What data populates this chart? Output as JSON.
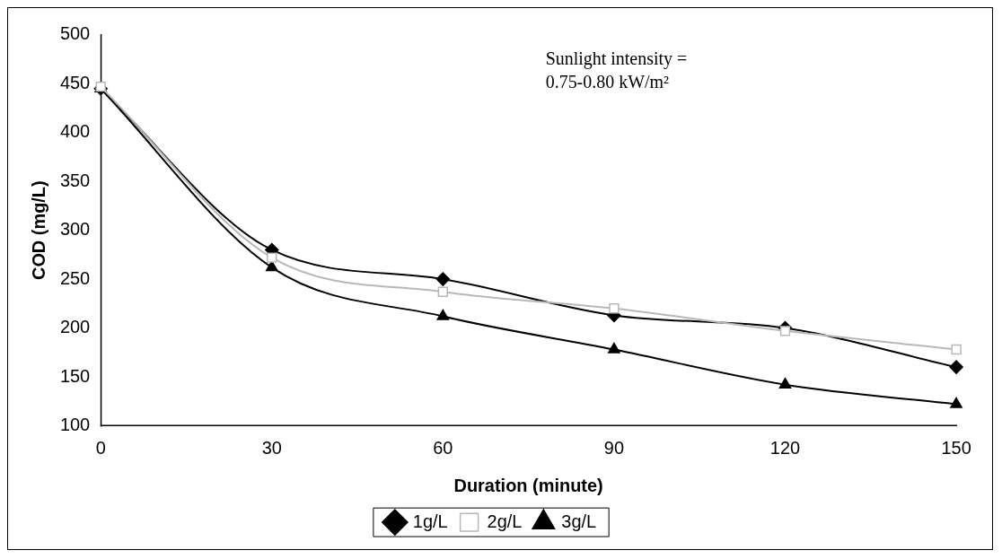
{
  "chart_data": {
    "type": "line",
    "xlabel": "Duration (minute)",
    "ylabel": "COD (mg/L)",
    "x": [
      0,
      30,
      60,
      90,
      120,
      150
    ],
    "series": [
      {
        "name": "1g/L",
        "color": "#000000",
        "marker": "diamond",
        "values": [
          445,
          280,
          250,
          213,
          200,
          160
        ]
      },
      {
        "name": "2g/L",
        "color": "#b8b8b8",
        "marker": "square",
        "values": [
          447,
          272,
          237,
          220,
          197,
          178
        ]
      },
      {
        "name": "3g/L",
        "color": "#000000",
        "marker": "triangle",
        "values": [
          445,
          262,
          212,
          178,
          142,
          122
        ]
      }
    ],
    "xlim": [
      0,
      150
    ],
    "xticks": [
      0,
      30,
      60,
      90,
      120,
      150
    ],
    "ylim": [
      100,
      500
    ],
    "yticks": [
      100,
      150,
      200,
      250,
      300,
      350,
      400,
      450,
      500
    ],
    "grid": false,
    "legend": "bottom",
    "annotations": [
      "Sunlight intensity =",
      "0.75-0.80 kW/m²"
    ]
  }
}
